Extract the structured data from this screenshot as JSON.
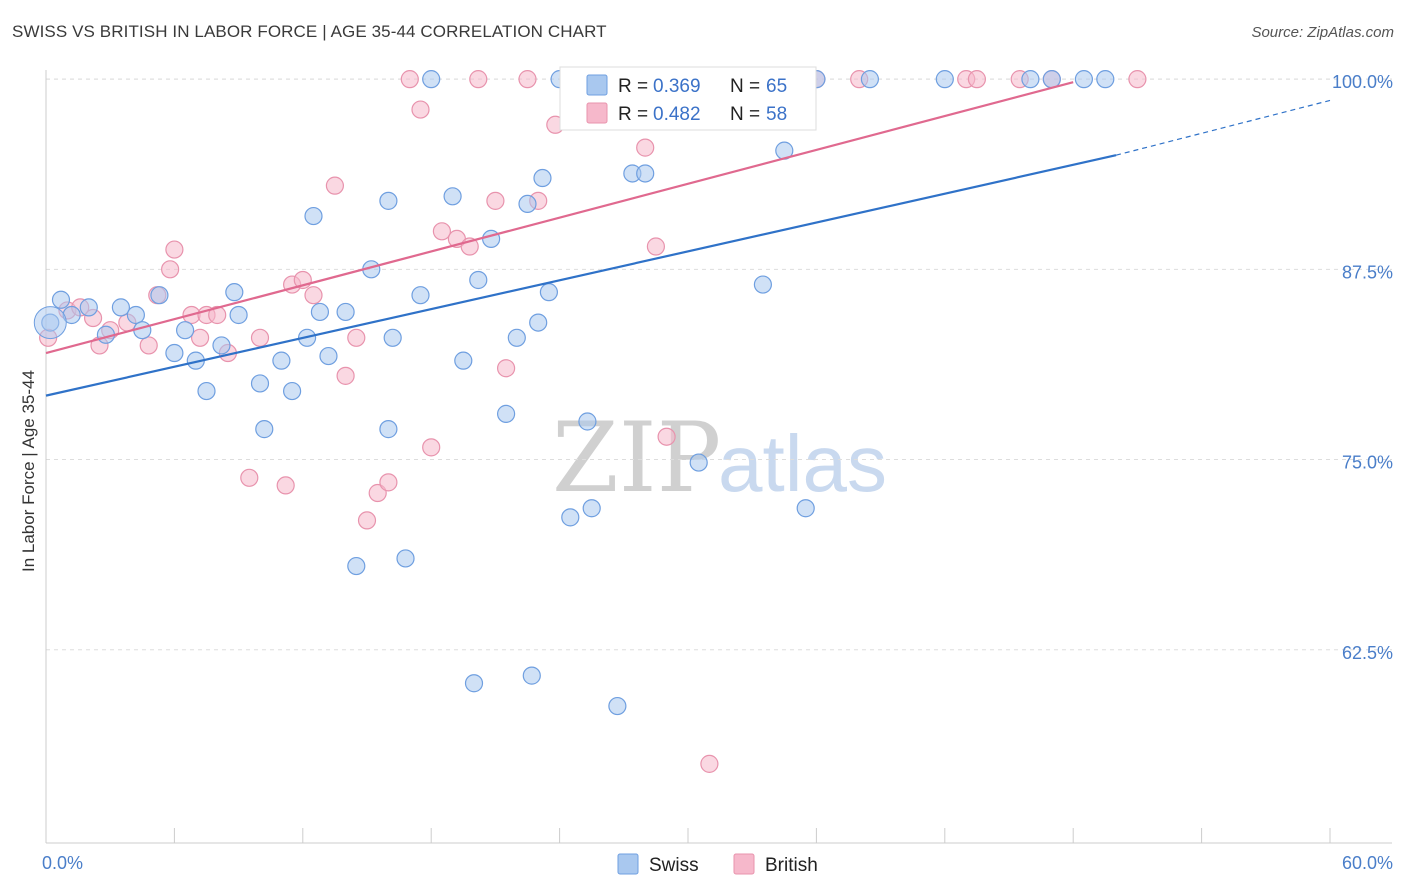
{
  "title": "SWISS VS BRITISH IN LABOR FORCE | AGE 35-44 CORRELATION CHART",
  "source": "Source: ZipAtlas.com",
  "watermark": {
    "zip": "ZIP",
    "atlas": "atlas"
  },
  "colors": {
    "swiss_fill": "#a9c8ef",
    "swiss_stroke": "#6f9fe0",
    "swiss_line": "#2f72c8",
    "british_fill": "#f6b8cb",
    "british_stroke": "#e893ad",
    "british_line": "#e0698f",
    "tick": "#4a7ec9",
    "grid": "#dddddd"
  },
  "legend": {
    "swiss": {
      "r_label": "R =",
      "r_value": "0.369",
      "n_label": "N =",
      "n_value": "65"
    },
    "british": {
      "r_label": "R =",
      "r_value": "0.482",
      "n_label": "N =",
      "n_value": "58"
    }
  },
  "chart_data": {
    "type": "scatter",
    "title": "SWISS VS BRITISH IN LABOR FORCE | AGE 35-44 CORRELATION CHART",
    "xlabel": "",
    "ylabel": "In Labor Force | Age 35-44",
    "xlim": [
      0,
      60
    ],
    "ylim": [
      49.8,
      100.6
    ],
    "x_tick_labels": [
      "0.0%",
      "60.0%"
    ],
    "y_ticks": [
      62.5,
      75.0,
      87.5,
      100.0
    ],
    "y_tick_labels": [
      "62.5%",
      "75.0%",
      "87.5%",
      "100.0%"
    ],
    "legend_labels": [
      "Swiss",
      "British"
    ],
    "series": [
      {
        "name": "Swiss",
        "r": 0.369,
        "n": 65,
        "trend": {
          "x": [
            0,
            50
          ],
          "y": [
            79.2,
            95.0
          ]
        },
        "trend_dashed": {
          "x": [
            50,
            60
          ],
          "y": [
            95.0,
            98.6
          ]
        },
        "points": [
          [
            0.2,
            84.0
          ],
          [
            0.7,
            85.5
          ],
          [
            1.2,
            84.5
          ],
          [
            2.0,
            85.0
          ],
          [
            2.8,
            83.2
          ],
          [
            3.5,
            85.0
          ],
          [
            4.2,
            84.5
          ],
          [
            4.5,
            83.5
          ],
          [
            5.3,
            85.8
          ],
          [
            6.0,
            82.0
          ],
          [
            6.5,
            83.5
          ],
          [
            7.0,
            81.5
          ],
          [
            7.5,
            79.5
          ],
          [
            8.2,
            82.5
          ],
          [
            8.8,
            86.0
          ],
          [
            9.0,
            84.5
          ],
          [
            10.0,
            80.0
          ],
          [
            10.2,
            77.0
          ],
          [
            11.5,
            79.5
          ],
          [
            11.0,
            81.5
          ],
          [
            12.2,
            83.0
          ],
          [
            12.5,
            91.0
          ],
          [
            12.8,
            84.7
          ],
          [
            13.2,
            81.8
          ],
          [
            14.0,
            84.7
          ],
          [
            14.5,
            68.0
          ],
          [
            15.2,
            87.5
          ],
          [
            16.0,
            92.0
          ],
          [
            16.2,
            83.0
          ],
          [
            16.0,
            77.0
          ],
          [
            16.8,
            68.5
          ],
          [
            17.5,
            85.8
          ],
          [
            18.0,
            100.0
          ],
          [
            19.0,
            92.3
          ],
          [
            19.5,
            81.5
          ],
          [
            20.2,
            86.8
          ],
          [
            20.0,
            60.3
          ],
          [
            20.8,
            89.5
          ],
          [
            21.5,
            78.0
          ],
          [
            22.0,
            83.0
          ],
          [
            22.5,
            91.8
          ],
          [
            22.7,
            60.8
          ],
          [
            23.0,
            84.0
          ],
          [
            23.2,
            93.5
          ],
          [
            23.5,
            86.0
          ],
          [
            24.0,
            100.0
          ],
          [
            24.5,
            71.2
          ],
          [
            25.3,
            77.5
          ],
          [
            25.5,
            71.8
          ],
          [
            26.7,
            58.8
          ],
          [
            27.4,
            93.8
          ],
          [
            28.0,
            93.8
          ],
          [
            27.5,
            100.0
          ],
          [
            30.5,
            74.8
          ],
          [
            32.0,
            100.0
          ],
          [
            33.5,
            86.5
          ],
          [
            34.5,
            95.3
          ],
          [
            35.5,
            71.8
          ],
          [
            36.0,
            100.0
          ],
          [
            38.5,
            100.0
          ],
          [
            42.0,
            100.0
          ],
          [
            46.0,
            100.0
          ],
          [
            47.0,
            100.0
          ],
          [
            48.5,
            100.0
          ],
          [
            49.5,
            100.0
          ]
        ]
      },
      {
        "name": "British",
        "r": 0.482,
        "n": 58,
        "trend": {
          "x": [
            0,
            48
          ],
          "y": [
            82.0,
            99.8
          ]
        },
        "points": [
          [
            0.1,
            83.0
          ],
          [
            1.0,
            84.8
          ],
          [
            1.6,
            85.0
          ],
          [
            2.2,
            84.3
          ],
          [
            2.5,
            82.5
          ],
          [
            3.0,
            83.5
          ],
          [
            3.8,
            84.0
          ],
          [
            4.8,
            82.5
          ],
          [
            5.2,
            85.8
          ],
          [
            5.8,
            87.5
          ],
          [
            6.0,
            88.8
          ],
          [
            6.8,
            84.5
          ],
          [
            7.2,
            83.0
          ],
          [
            7.5,
            84.5
          ],
          [
            8.0,
            84.5
          ],
          [
            8.5,
            82.0
          ],
          [
            9.5,
            73.8
          ],
          [
            10.0,
            83.0
          ],
          [
            11.2,
            73.3
          ],
          [
            11.5,
            86.5
          ],
          [
            12.0,
            86.8
          ],
          [
            12.5,
            85.8
          ],
          [
            13.5,
            93.0
          ],
          [
            14.0,
            80.5
          ],
          [
            14.5,
            83.0
          ],
          [
            15.0,
            71.0
          ],
          [
            15.5,
            72.8
          ],
          [
            16.0,
            73.5
          ],
          [
            17.0,
            100.0
          ],
          [
            17.5,
            98.0
          ],
          [
            18.0,
            75.8
          ],
          [
            18.5,
            90.0
          ],
          [
            19.2,
            89.5
          ],
          [
            19.8,
            89.0
          ],
          [
            20.2,
            100.0
          ],
          [
            21.0,
            92.0
          ],
          [
            21.5,
            81.0
          ],
          [
            22.5,
            100.0
          ],
          [
            23.0,
            92.0
          ],
          [
            23.8,
            97.0
          ],
          [
            24.5,
            100.0
          ],
          [
            25.2,
            100.0
          ],
          [
            26.0,
            100.0
          ],
          [
            27.0,
            100.0
          ],
          [
            28.0,
            95.5
          ],
          [
            28.5,
            89.0
          ],
          [
            29.0,
            76.5
          ],
          [
            30.0,
            100.0
          ],
          [
            31.0,
            55.0
          ],
          [
            32.0,
            100.0
          ],
          [
            33.5,
            100.0
          ],
          [
            36.0,
            100.0
          ],
          [
            38.0,
            100.0
          ],
          [
            43.0,
            100.0
          ],
          [
            43.5,
            100.0
          ],
          [
            45.5,
            100.0
          ],
          [
            47.0,
            100.0
          ],
          [
            51.0,
            100.0
          ]
        ]
      }
    ]
  }
}
